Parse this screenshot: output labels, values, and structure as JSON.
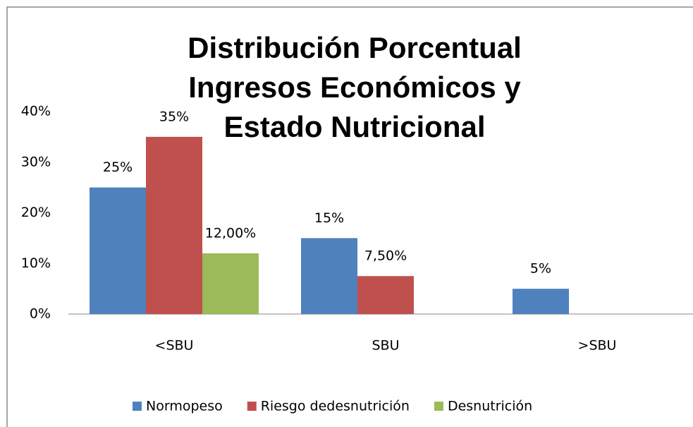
{
  "chart_data": {
    "type": "bar",
    "title": "Distribución Porcentual Ingresos Económicos y Estado Nutricional",
    "categories": [
      "<SBU",
      "SBU",
      ">SBU"
    ],
    "series": [
      {
        "name": "Normopeso",
        "color": "#4f81bd",
        "values": [
          25,
          15,
          5
        ],
        "value_labels": [
          "25%",
          "15%",
          "5%"
        ]
      },
      {
        "name": "Riesgo dedesnutrición",
        "color": "#c0504d",
        "values": [
          35,
          7.5,
          null
        ],
        "value_labels": [
          "35%",
          "7,50%",
          null
        ]
      },
      {
        "name": "Desnutrición",
        "color": "#9bbb59",
        "values": [
          12,
          null,
          null
        ],
        "value_labels": [
          "12,00%",
          null,
          null
        ]
      }
    ],
    "ylim": [
      0,
      40
    ],
    "yticks": [
      {
        "value": 0,
        "label": "0%"
      },
      {
        "value": 10,
        "label": "10%"
      },
      {
        "value": 20,
        "label": "20%"
      },
      {
        "value": 30,
        "label": "30%"
      },
      {
        "value": 40,
        "label": "40%"
      }
    ],
    "grid": false,
    "legend": "bottom"
  }
}
